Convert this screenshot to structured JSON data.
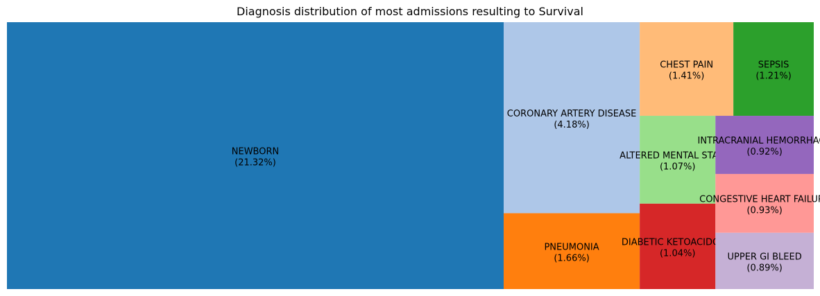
{
  "chart_data": {
    "type": "treemap",
    "title": "Diagnosis distribution of most admissions resulting to Survival",
    "items": [
      {
        "label": "NEWBORN",
        "value_label": "(21.32%)",
        "value": 21.32,
        "color": "#1f77b4"
      },
      {
        "label": "CORONARY ARTERY DISEASE",
        "value_label": "(4.18%)",
        "value": 4.18,
        "color": "#aec7e8"
      },
      {
        "label": "PNEUMONIA",
        "value_label": "(1.66%)",
        "value": 1.66,
        "color": "#ff7f0e"
      },
      {
        "label": "CHEST PAIN",
        "value_label": "(1.41%)",
        "value": 1.41,
        "color": "#ffbb78"
      },
      {
        "label": "SEPSIS",
        "value_label": "(1.21%)",
        "value": 1.21,
        "color": "#2ca02c"
      },
      {
        "label": "ALTERED MENTAL STATUS",
        "value_label": "(1.07%)",
        "value": 1.07,
        "color": "#98df8a"
      },
      {
        "label": "DIABETIC KETOACIDOSIS",
        "value_label": "(1.04%)",
        "value": 1.04,
        "color": "#d62728"
      },
      {
        "label": "INTRACRANIAL HEMORRHAGE",
        "value_label": "(0.92%)",
        "value": 0.92,
        "color": "#9467bd"
      },
      {
        "label": "CONGESTIVE HEART FAILURE",
        "value_label": "(0.93%)",
        "value": 0.93,
        "color": "#ff9896"
      },
      {
        "label": "UPPER GI BLEED",
        "value_label": "(0.89%)",
        "value": 0.89,
        "color": "#c5b0d5"
      }
    ]
  }
}
